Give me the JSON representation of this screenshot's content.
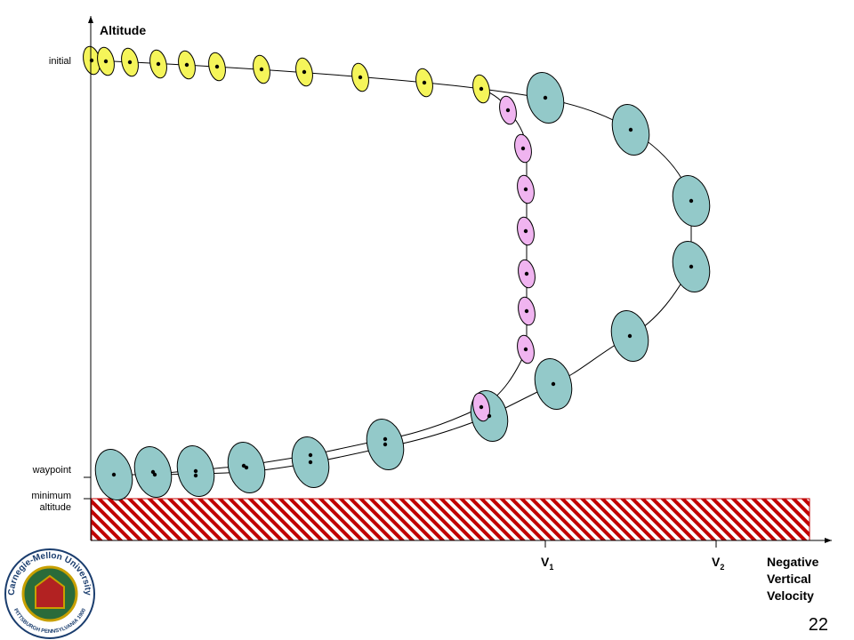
{
  "axis": {
    "y_label": "Altitude",
    "x_label_lines": [
      "Negative",
      "Vertical",
      "Velocity"
    ]
  },
  "y_markers": {
    "initial": "initial",
    "waypoint": "waypoint",
    "minimum_lines": [
      "minimum",
      "altitude"
    ]
  },
  "x_markers": [
    {
      "letter": "V",
      "sub": "1"
    },
    {
      "letter": "V",
      "sub": "2"
    }
  ],
  "logo": {
    "name": "Carnegie-Mellon University",
    "place": "PITTSBURGH PENNSYLVANIA 1900"
  },
  "page_number": "22"
}
